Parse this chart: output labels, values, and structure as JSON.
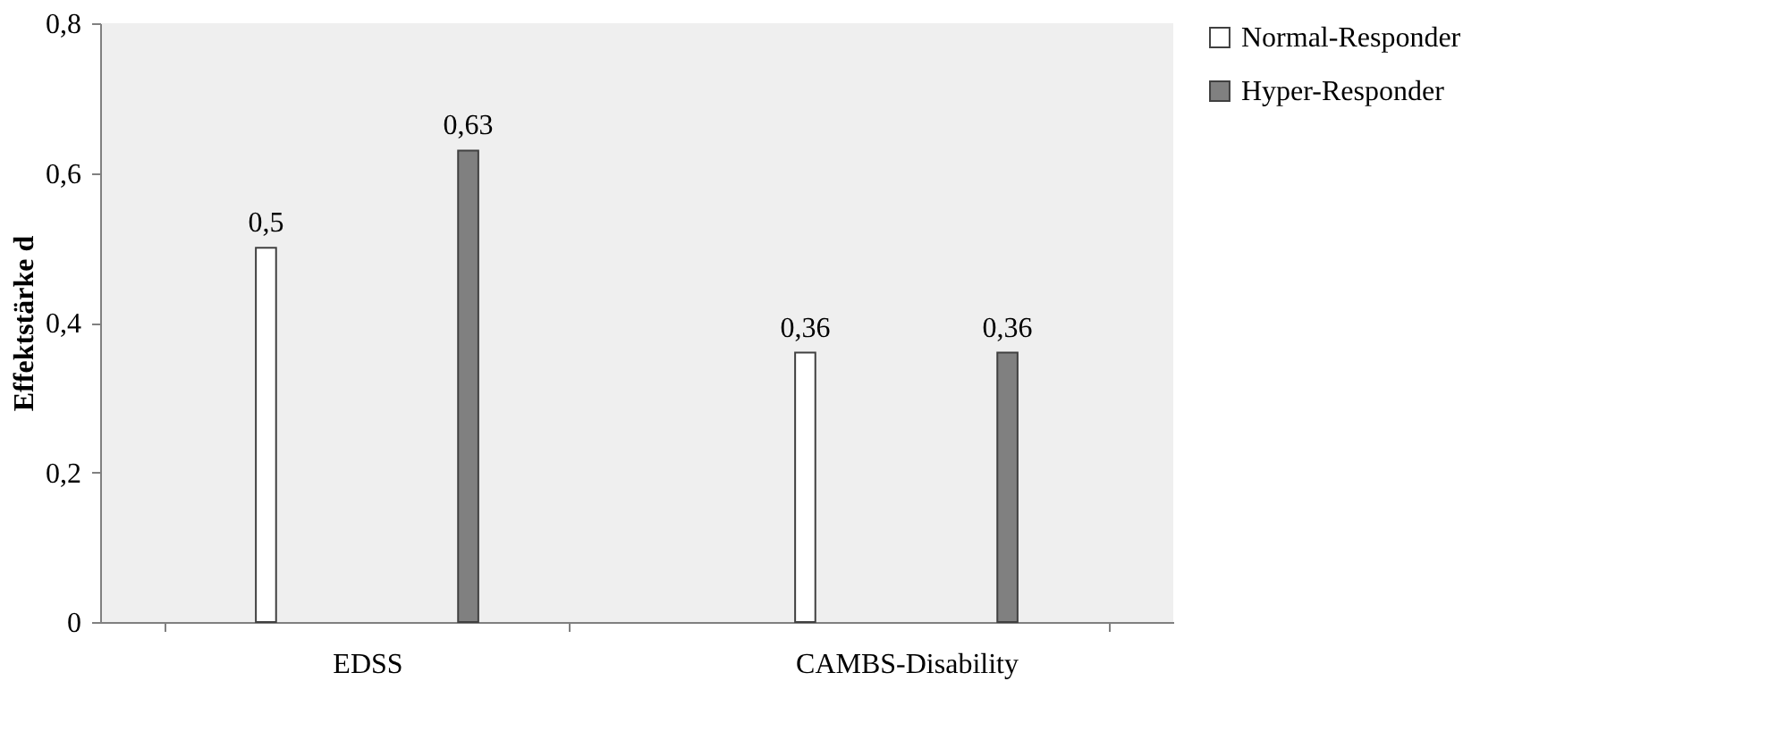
{
  "chart_data": {
    "type": "bar",
    "ylabel": "Effektstärke d",
    "categories": [
      "EDSS",
      "CAMBS-Disability"
    ],
    "series": [
      {
        "name": "Normal-Responder",
        "color": "#ffffff",
        "values": [
          0.5,
          0.36
        ],
        "value_labels": [
          "0,5",
          "0,36"
        ]
      },
      {
        "name": "Hyper-Responder",
        "color": "#808080",
        "values": [
          0.63,
          0.36
        ],
        "value_labels": [
          "0,63",
          "0,36"
        ]
      }
    ],
    "ylim": [
      0,
      0.8
    ],
    "yticks": [
      {
        "value": 0,
        "label": "0"
      },
      {
        "value": 0.2,
        "label": "0,2"
      },
      {
        "value": 0.4,
        "label": "0,4"
      },
      {
        "value": 0.6,
        "label": "0,6"
      },
      {
        "value": 0.8,
        "label": "0,8"
      }
    ],
    "grid": false,
    "legend": "right"
  }
}
